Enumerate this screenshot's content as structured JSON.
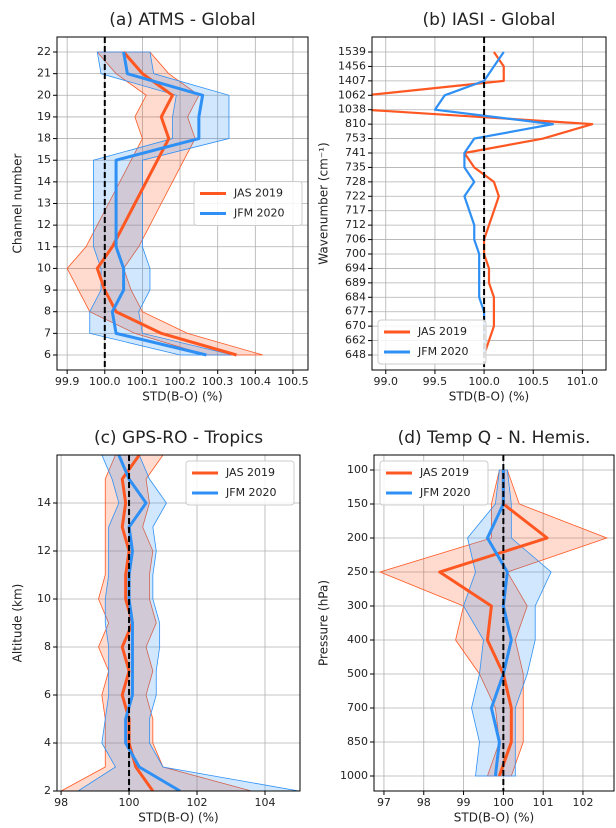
{
  "chart_data": [
    {
      "type": "line",
      "orientation": "horizontal",
      "title": "(a) ATMS - Global",
      "xlabel": "STD(B-O) (%)",
      "ylabel": "Channel number",
      "categories": [
        "6",
        "7",
        "8",
        "9",
        "10",
        "11",
        "12",
        "13",
        "14",
        "15",
        "18",
        "19",
        "20",
        "21",
        "22"
      ],
      "xlim": [
        99.873,
        100.54
      ],
      "xticks": [
        99.9,
        {
          "value": 100,
          "label": "100.0"
        },
        100.1,
        100.2,
        100.3,
        100.4,
        100.5
      ],
      "grid": true,
      "vline": 100,
      "legend": "center right",
      "series": [
        {
          "name": "JAS 2019",
          "color": "#ff5722",
          "values": [
            100.35,
            100.15,
            100.03,
            100.0,
            99.98,
            100.02,
            100.05,
            100.08,
            100.11,
            100.14,
            100.17,
            100.15,
            100.18,
            100.1,
            100.05
          ],
          "lower": [
            100.27,
            100.08,
            99.96,
            99.93,
            99.9,
            99.95,
            99.98,
            100.01,
            100.04,
            100.07,
            100.1,
            100.08,
            100.11,
            100.03,
            99.98
          ],
          "upper": [
            100.42,
            100.22,
            100.1,
            100.07,
            100.05,
            100.09,
            100.12,
            100.15,
            100.18,
            100.21,
            100.24,
            100.22,
            100.25,
            100.17,
            100.12
          ]
        },
        {
          "name": "JFM 2020",
          "color": "#2e90f5",
          "values": [
            100.27,
            100.03,
            100.02,
            100.05,
            100.05,
            100.03,
            100.03,
            100.03,
            100.03,
            100.03,
            100.25,
            100.25,
            100.26,
            100.06,
            100.05
          ],
          "lower": [
            100.2,
            99.96,
            99.96,
            99.99,
            99.99,
            99.97,
            99.97,
            99.97,
            99.97,
            99.97,
            100.18,
            100.18,
            100.19,
            99.99,
            99.98
          ],
          "upper": [
            100.34,
            100.1,
            100.09,
            100.12,
            100.12,
            100.1,
            100.1,
            100.1,
            100.1,
            100.1,
            100.33,
            100.33,
            100.33,
            100.13,
            100.12
          ]
        }
      ]
    },
    {
      "type": "line",
      "orientation": "horizontal",
      "title": "(b) IASI - Global",
      "xlabel": "STD(B-O) (%)",
      "ylabel": "Wavenumber (cm⁻¹)",
      "categories": [
        "648",
        "662",
        "670",
        "677",
        "684",
        "689",
        "694",
        "700",
        "706",
        "712",
        "717",
        "722",
        "728",
        "735",
        "741",
        "753",
        "810",
        "1038",
        "1062",
        "1407",
        "1456",
        "1539"
      ],
      "xlim": [
        98.86,
        101.24
      ],
      "xticks": [
        {
          "value": 99,
          "label": "99.0"
        },
        99.5,
        {
          "value": 100,
          "label": "100.0"
        },
        100.5,
        {
          "value": 101,
          "label": "101.0"
        }
      ],
      "grid": true,
      "vline": 100,
      "legend": "lower left",
      "series": [
        {
          "name": "JAS 2019",
          "color": "#ff5722",
          "values": [
            100.0,
            100.05,
            100.1,
            100.1,
            100.1,
            100.05,
            100.05,
            100.0,
            100.0,
            100.05,
            100.1,
            100.15,
            100.1,
            99.9,
            99.8,
            100.6,
            101.1,
            98.8,
            98.8,
            100.2,
            100.2,
            100.1
          ]
        },
        {
          "name": "JFM 2020",
          "color": "#2e90f5",
          "values": [
            100.0,
            100.0,
            100.0,
            100.0,
            99.95,
            99.95,
            99.95,
            99.95,
            99.9,
            99.9,
            99.85,
            99.8,
            99.9,
            99.8,
            99.8,
            99.9,
            100.7,
            99.5,
            99.6,
            100.0,
            100.1,
            100.2
          ]
        }
      ]
    },
    {
      "type": "line",
      "orientation": "horizontal",
      "title": "(c) GPS-RO - Tropics",
      "xlabel": "STD(B-O) (%)",
      "ylabel": "Altitude (km)",
      "y": [
        2,
        3,
        4,
        5,
        6,
        7,
        8,
        9,
        10,
        11,
        12,
        13,
        14,
        15,
        16
      ],
      "xlim": [
        97.88,
        105.03
      ],
      "xticks": [
        98,
        100,
        102,
        104
      ],
      "ylim": [
        2,
        16
      ],
      "yticks": [
        2,
        4,
        6,
        8,
        10,
        12,
        14
      ],
      "grid": true,
      "vline": 100,
      "legend": "upper right",
      "series": [
        {
          "name": "JAS 2019",
          "color": "#ff5722",
          "values": [
            100.7,
            100.2,
            100.0,
            100.0,
            99.8,
            100.0,
            99.8,
            100.1,
            99.9,
            99.9,
            100.0,
            99.8,
            99.9,
            99.8,
            100.3
          ],
          "lower": [
            98.0,
            99.3,
            99.3,
            99.3,
            99.2,
            99.4,
            99.1,
            99.4,
            99.1,
            99.3,
            99.3,
            99.3,
            99.3,
            99.3,
            99.6
          ],
          "upper": [
            103.6,
            101.0,
            100.7,
            100.7,
            100.5,
            100.7,
            100.5,
            100.8,
            100.6,
            100.6,
            100.7,
            100.4,
            100.6,
            100.5,
            101.0
          ]
        },
        {
          "name": "JFM 2020",
          "color": "#2e90f5",
          "values": [
            101.5,
            100.3,
            99.9,
            99.9,
            100.1,
            100.1,
            100.1,
            100.1,
            100.0,
            100.0,
            100.1,
            100.0,
            100.5,
            100.0,
            99.7
          ],
          "lower": [
            98.5,
            99.6,
            99.2,
            99.3,
            99.4,
            99.4,
            99.4,
            99.3,
            99.3,
            99.4,
            99.4,
            99.4,
            99.7,
            99.5,
            99.2
          ],
          "upper": [
            105.0,
            101.0,
            100.6,
            100.6,
            100.8,
            100.8,
            100.9,
            100.9,
            100.7,
            100.7,
            100.8,
            100.7,
            101.1,
            100.6,
            100.3
          ]
        }
      ]
    },
    {
      "type": "line",
      "orientation": "horizontal",
      "title": "(d) Temp Q - N. Hemis.",
      "xlabel": "STD(B-O) (%)",
      "ylabel": "Pressure (hPa)",
      "categories": [
        "1000",
        "850",
        "700",
        "500",
        "400",
        "300",
        "250",
        "200",
        "150",
        "100"
      ],
      "xlim": [
        96.75,
        102.78
      ],
      "xticks": [
        97,
        98,
        99,
        100,
        101,
        102
      ],
      "grid": true,
      "vline": 100,
      "legend": "upper left",
      "series": [
        {
          "name": "JAS 2019",
          "color": "#ff5722",
          "values": [
            99.9,
            100.2,
            100.2,
            100.0,
            99.6,
            99.7,
            98.4,
            101.1,
            100.0,
            100.0
          ],
          "lower": [
            99.6,
            99.9,
            99.8,
            99.4,
            98.8,
            99.0,
            96.9,
            99.7,
            99.7,
            99.9
          ],
          "upper": [
            100.2,
            100.5,
            100.5,
            100.5,
            100.3,
            100.6,
            100.1,
            102.6,
            100.4,
            100.1
          ]
        },
        {
          "name": "JFM 2020",
          "color": "#2e90f5",
          "values": [
            99.8,
            99.9,
            99.7,
            100.0,
            100.2,
            100.0,
            100.1,
            99.6,
            100.0,
            100.0
          ],
          "lower": [
            99.3,
            99.4,
            99.2,
            99.4,
            99.5,
            99.0,
            99.3,
            99.1,
            99.8,
            99.9
          ],
          "upper": [
            100.3,
            100.3,
            100.3,
            100.6,
            100.8,
            100.8,
            101.2,
            100.2,
            100.2,
            100.1
          ]
        }
      ]
    }
  ]
}
